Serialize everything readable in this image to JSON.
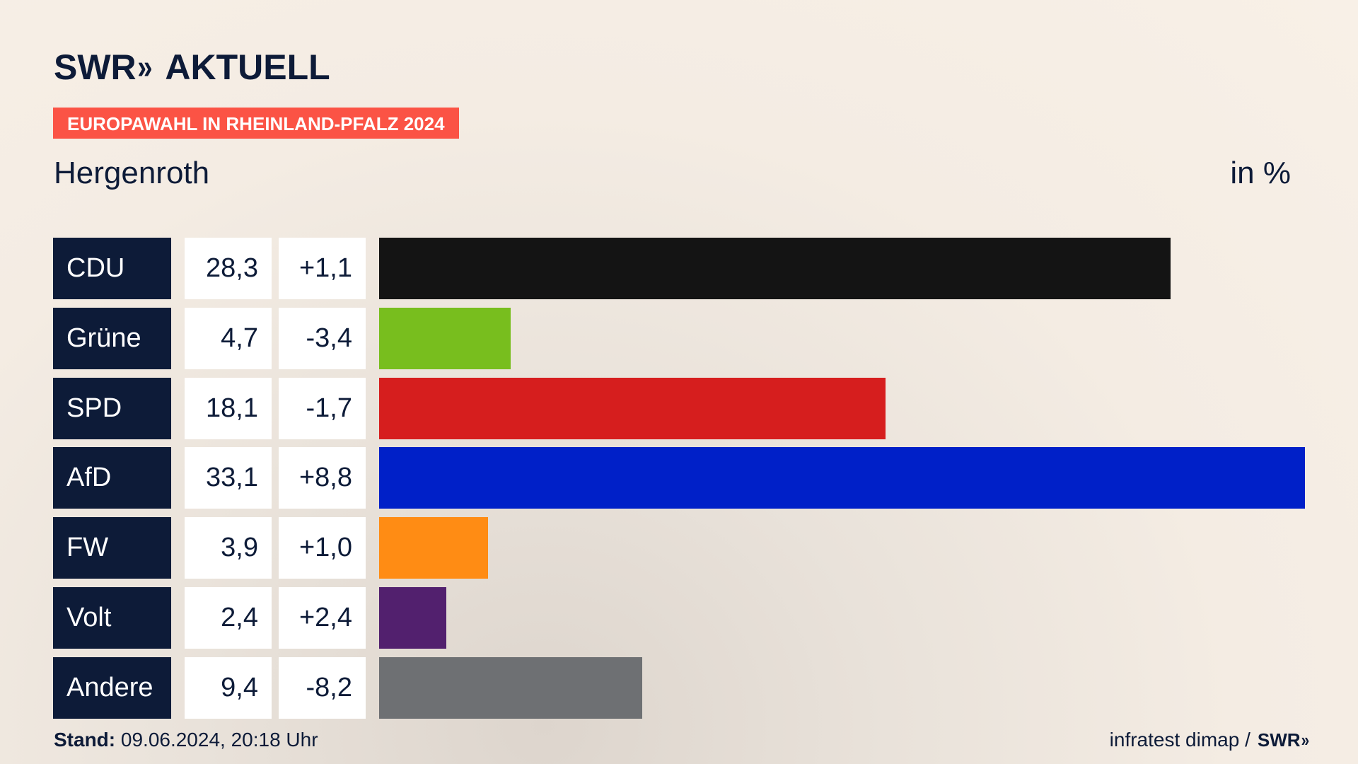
{
  "header": {
    "brand_swr": "SWR",
    "brand_chevrons": "»",
    "brand_aktuell": "AKTUELL",
    "tag": "EUROPAWAHL IN RHEINLAND-PFALZ 2024",
    "place": "Hergenroth",
    "unit": "in %"
  },
  "chart_data": {
    "type": "bar",
    "orientation": "horizontal",
    "categories": [
      "CDU",
      "Grüne",
      "SPD",
      "AfD",
      "FW",
      "Volt",
      "Andere"
    ],
    "values": [
      28.3,
      4.7,
      18.1,
      33.1,
      3.9,
      2.4,
      9.4
    ],
    "values_label": [
      "28,3",
      "4,7",
      "18,1",
      "33,1",
      "3,9",
      "2,4",
      "9,4"
    ],
    "changes_label": [
      "+1,1",
      "-3,4",
      "-1,7",
      "+8,8",
      "+1,0",
      "+2,4",
      "-8,2"
    ],
    "colors": [
      "#141414",
      "#78be1e",
      "#d61e1e",
      "#0020c8",
      "#ff8c14",
      "#52206e",
      "#6e7073"
    ]
  },
  "footer": {
    "stand_label": "Stand:",
    "stand_value": " 09.06.2024, 20:18 Uhr",
    "source": "infratest dimap /",
    "source_brand": "SWR",
    "source_chevrons": "»"
  }
}
